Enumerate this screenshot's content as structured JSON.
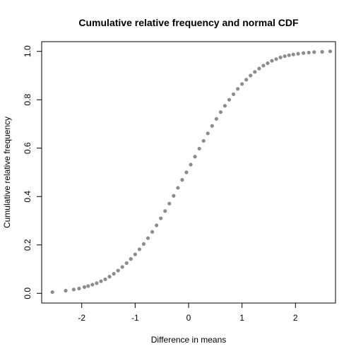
{
  "chart_data": {
    "type": "scatter",
    "title": "Cumulative relative frequency and normal CDF",
    "xlabel": "Difference in means",
    "ylabel": "Cumulative relative frequency",
    "xlim": [
      -2.75,
      2.75
    ],
    "ylim": [
      -0.04,
      1.04
    ],
    "x_ticks": [
      -2,
      -1,
      0,
      1,
      2
    ],
    "y_ticks": [
      0.0,
      0.2,
      0.4,
      0.6,
      0.8,
      1.0
    ],
    "x_tick_labels": [
      "-2",
      "-1",
      "0",
      "1",
      "2"
    ],
    "y_tick_labels": [
      "0.0",
      "0.2",
      "0.4",
      "0.6",
      "0.8",
      "1.0"
    ],
    "point_color": "#8c8c8c",
    "grid": false,
    "series": [
      {
        "x": [
          -2.55,
          -2.3,
          -2.15,
          -2.05,
          -1.95,
          -1.88,
          -1.8,
          -1.72,
          -1.64,
          -1.56,
          -1.48,
          -1.4,
          -1.32,
          -1.24,
          -1.16,
          -1.08,
          -1.0,
          -0.92,
          -0.84,
          -0.76,
          -0.68,
          -0.6,
          -0.52,
          -0.44,
          -0.36,
          -0.28,
          -0.2,
          -0.12,
          -0.04,
          0.04,
          0.12,
          0.2,
          0.28,
          0.36,
          0.44,
          0.52,
          0.6,
          0.68,
          0.76,
          0.84,
          0.92,
          1.0,
          1.08,
          1.16,
          1.24,
          1.32,
          1.4,
          1.48,
          1.56,
          1.64,
          1.72,
          1.8,
          1.88,
          1.96,
          2.05,
          2.15,
          2.25,
          2.35,
          2.5,
          2.65
        ],
        "y": [
          0.005,
          0.011,
          0.016,
          0.02,
          0.026,
          0.03,
          0.036,
          0.042,
          0.05,
          0.058,
          0.069,
          0.081,
          0.094,
          0.109,
          0.125,
          0.142,
          0.161,
          0.182,
          0.204,
          0.228,
          0.254,
          0.281,
          0.31,
          0.34,
          0.371,
          0.403,
          0.436,
          0.469,
          0.5,
          0.532,
          0.565,
          0.598,
          0.63,
          0.661,
          0.692,
          0.721,
          0.749,
          0.775,
          0.8,
          0.823,
          0.845,
          0.865,
          0.883,
          0.9,
          0.915,
          0.929,
          0.941,
          0.951,
          0.961,
          0.968,
          0.975,
          0.98,
          0.984,
          0.987,
          0.99,
          0.993,
          0.995,
          0.997,
          0.998,
          1.0
        ]
      }
    ]
  }
}
